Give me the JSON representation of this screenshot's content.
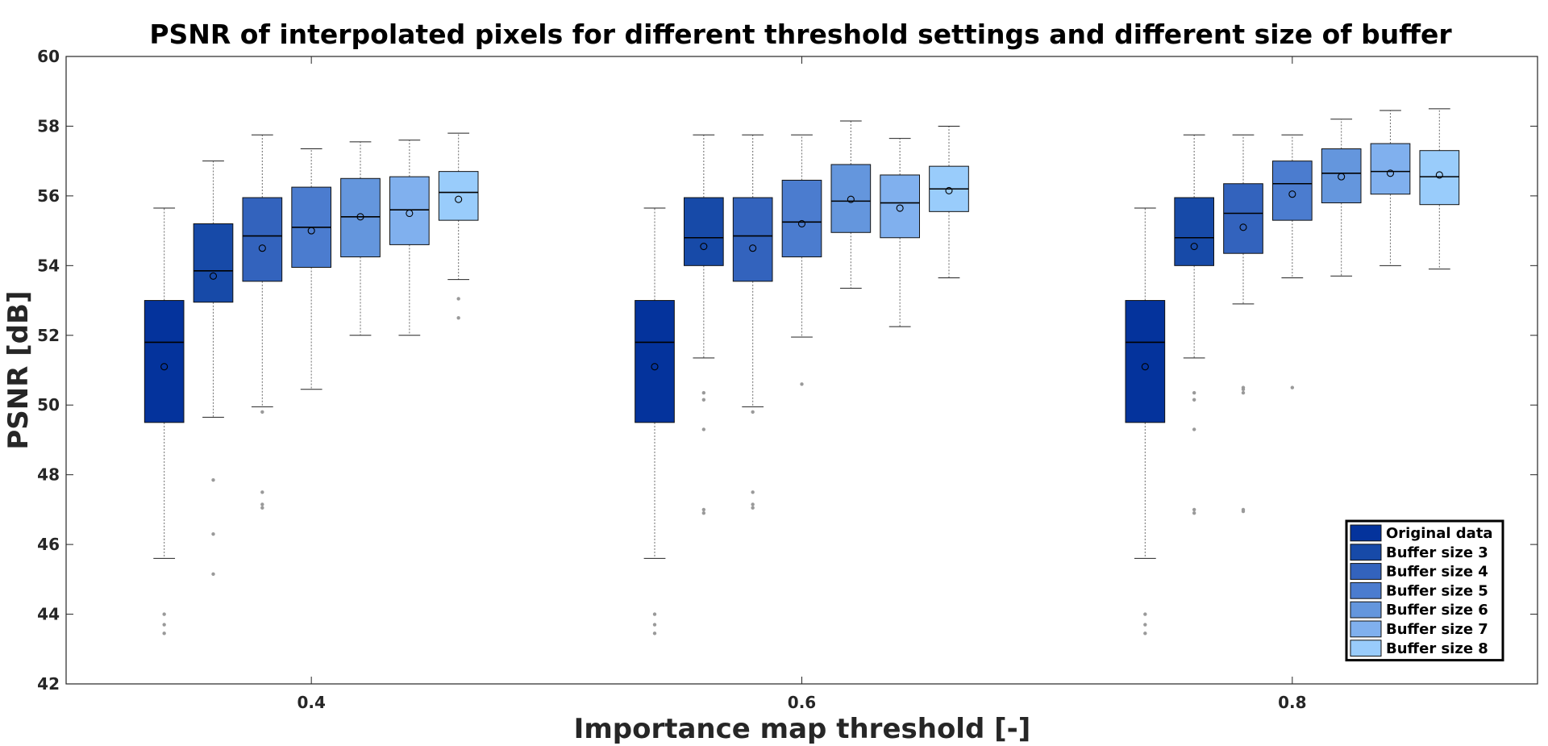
{
  "chart_data": {
    "type": "boxplot",
    "title": "PSNR of interpolated pixels for different threshold settings and different size of buffer",
    "xlabel": "Importance map threshold [-]",
    "ylabel": "PSNR [dB]",
    "ylim": [
      42,
      60
    ],
    "xlim": [
      0.3,
      0.9
    ],
    "xticks": [
      0.4,
      0.6,
      0.8
    ],
    "xtick_labels": [
      "0.4",
      "0.6",
      "0.8"
    ],
    "yticks": [
      42,
      44,
      46,
      48,
      50,
      52,
      54,
      56,
      58,
      60
    ],
    "ytick_labels": [
      "42",
      "44",
      "46",
      "48",
      "50",
      "52",
      "54",
      "56",
      "58",
      "60"
    ],
    "grid": false,
    "legend_position": "bottom-right",
    "group_offsets": [
      -0.06,
      -0.04,
      -0.02,
      0.0,
      0.02,
      0.04,
      0.06
    ],
    "box_width": 0.016,
    "series": [
      {
        "name": "Original data",
        "color": "#04339c",
        "groups": [
          {
            "x": 0.4,
            "whislo": 45.6,
            "q1": 49.5,
            "median": 51.8,
            "q3": 53.0,
            "whishi": 55.65,
            "mean": 51.1,
            "fliers": [
              44.0,
              43.7,
              43.45
            ]
          },
          {
            "x": 0.6,
            "whislo": 45.6,
            "q1": 49.5,
            "median": 51.8,
            "q3": 53.0,
            "whishi": 55.65,
            "mean": 51.1,
            "fliers": [
              44.0,
              43.7,
              43.45
            ]
          },
          {
            "x": 0.8,
            "whislo": 45.6,
            "q1": 49.5,
            "median": 51.8,
            "q3": 53.0,
            "whishi": 55.65,
            "mean": 51.1,
            "fliers": [
              44.0,
              43.7,
              43.45
            ]
          }
        ]
      },
      {
        "name": "Buffer size 3",
        "color": "#174aa8",
        "groups": [
          {
            "x": 0.4,
            "whislo": 49.65,
            "q1": 52.95,
            "median": 53.85,
            "q3": 55.2,
            "whishi": 57.0,
            "mean": 53.7,
            "fliers": [
              47.85,
              46.3,
              45.15
            ]
          },
          {
            "x": 0.6,
            "whislo": 51.35,
            "q1": 54.0,
            "median": 54.8,
            "q3": 55.95,
            "whishi": 57.75,
            "mean": 54.55,
            "fliers": [
              50.35,
              50.15,
              49.3,
              47.0,
              46.9
            ]
          },
          {
            "x": 0.8,
            "whislo": 51.35,
            "q1": 54.0,
            "median": 54.8,
            "q3": 55.95,
            "whishi": 57.75,
            "mean": 54.55,
            "fliers": [
              50.35,
              50.15,
              49.3,
              47.0,
              46.9
            ]
          }
        ]
      },
      {
        "name": "Buffer size 4",
        "color": "#3363bd",
        "groups": [
          {
            "x": 0.4,
            "whislo": 49.95,
            "q1": 53.55,
            "median": 54.85,
            "q3": 55.95,
            "whishi": 57.75,
            "mean": 54.5,
            "fliers": [
              49.8,
              47.5,
              47.15,
              47.05
            ]
          },
          {
            "x": 0.6,
            "whislo": 49.95,
            "q1": 53.55,
            "median": 54.85,
            "q3": 55.95,
            "whishi": 57.75,
            "mean": 54.5,
            "fliers": [
              49.8,
              47.5,
              47.15,
              47.05
            ]
          },
          {
            "x": 0.8,
            "whislo": 52.9,
            "q1": 54.35,
            "median": 55.5,
            "q3": 56.35,
            "whishi": 57.75,
            "mean": 55.1,
            "fliers": [
              50.5,
              50.45,
              50.35,
              47.0,
              46.95
            ]
          }
        ]
      },
      {
        "name": "Buffer size 5",
        "color": "#4b7ccf",
        "groups": [
          {
            "x": 0.4,
            "whislo": 50.45,
            "q1": 53.95,
            "median": 55.1,
            "q3": 56.25,
            "whishi": 57.35,
            "mean": 55.0,
            "fliers": []
          },
          {
            "x": 0.6,
            "whislo": 51.95,
            "q1": 54.25,
            "median": 55.25,
            "q3": 56.45,
            "whishi": 57.75,
            "mean": 55.2,
            "fliers": [
              50.6
            ]
          },
          {
            "x": 0.8,
            "whislo": 53.65,
            "q1": 55.3,
            "median": 56.35,
            "q3": 57.0,
            "whishi": 57.75,
            "mean": 56.05,
            "fliers": [
              50.5
            ]
          }
        ]
      },
      {
        "name": "Buffer size 6",
        "color": "#6496dd",
        "groups": [
          {
            "x": 0.4,
            "whislo": 52.0,
            "q1": 54.25,
            "median": 55.4,
            "q3": 56.5,
            "whishi": 57.55,
            "mean": 55.4,
            "fliers": []
          },
          {
            "x": 0.6,
            "whislo": 53.35,
            "q1": 54.95,
            "median": 55.85,
            "q3": 56.9,
            "whishi": 58.15,
            "mean": 55.9,
            "fliers": []
          },
          {
            "x": 0.8,
            "whislo": 53.7,
            "q1": 55.8,
            "median": 56.65,
            "q3": 57.35,
            "whishi": 58.2,
            "mean": 56.55,
            "fliers": []
          }
        ]
      },
      {
        "name": "Buffer size 7",
        "color": "#80b0ee",
        "groups": [
          {
            "x": 0.4,
            "whislo": 52.0,
            "q1": 54.6,
            "median": 55.6,
            "q3": 56.55,
            "whishi": 57.6,
            "mean": 55.5,
            "fliers": []
          },
          {
            "x": 0.6,
            "whislo": 52.25,
            "q1": 54.8,
            "median": 55.8,
            "q3": 56.6,
            "whishi": 57.65,
            "mean": 55.65,
            "fliers": []
          },
          {
            "x": 0.8,
            "whislo": 54.0,
            "q1": 56.05,
            "median": 56.7,
            "q3": 57.5,
            "whishi": 58.45,
            "mean": 56.65,
            "fliers": []
          }
        ]
      },
      {
        "name": "Buffer size 8",
        "color": "#99ccfb",
        "groups": [
          {
            "x": 0.4,
            "whislo": 53.6,
            "q1": 55.3,
            "median": 56.1,
            "q3": 56.7,
            "whishi": 57.8,
            "mean": 55.9,
            "fliers": [
              53.05,
              52.5
            ]
          },
          {
            "x": 0.6,
            "whislo": 53.65,
            "q1": 55.55,
            "median": 56.2,
            "q3": 56.85,
            "whishi": 58.0,
            "mean": 56.15,
            "fliers": []
          },
          {
            "x": 0.8,
            "whislo": 53.9,
            "q1": 55.75,
            "median": 56.55,
            "q3": 57.3,
            "whishi": 58.5,
            "mean": 56.6,
            "fliers": []
          }
        ]
      }
    ]
  }
}
